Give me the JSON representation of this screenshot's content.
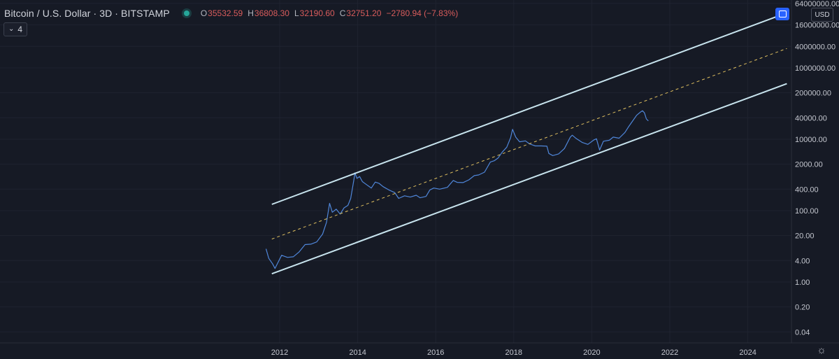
{
  "header": {
    "symbol_title": "Bitcoin / U.S. Dollar · 3D · BITSTAMP",
    "ohlc": [
      {
        "key": "O",
        "value": "35532.59"
      },
      {
        "key": "H",
        "value": "36808.30"
      },
      {
        "key": "L",
        "value": "32190.60"
      },
      {
        "key": "C",
        "value": "32751.20"
      }
    ],
    "change": "−2780.94 (−7.83%)",
    "indicator_count": "4"
  },
  "currency": "USD",
  "colors": {
    "background": "#161a25",
    "price_series": "#4f86d9",
    "channel_lines": "#c8e4ee",
    "midline": "#e0c060",
    "grid": "#1f2330"
  },
  "chart_data": {
    "type": "line",
    "title": "",
    "y_scale": "log",
    "x_axis_labels": [
      "2012",
      "2014",
      "2016",
      "2018",
      "2020",
      "2022",
      "2024"
    ],
    "y_axis_labels": [
      "64000000.00",
      "16000000.00",
      "4000000.00",
      "1000000.00",
      "200000.00",
      "40000.00",
      "10000.00",
      "2000.00",
      "400.00",
      "100.00",
      "20.00",
      "4.00",
      "1.00",
      "0.20",
      "0.04"
    ],
    "y_ticks": [
      64000000,
      16000000,
      4000000,
      1000000,
      200000,
      40000,
      10000,
      2000,
      400,
      100,
      20,
      4,
      1,
      0.2,
      0.04
    ],
    "grid": true,
    "series": [
      {
        "type": "price",
        "points": [
          [
            2011.65,
            8.5
          ],
          [
            2011.72,
            4.6
          ],
          [
            2011.82,
            3.2
          ],
          [
            2011.88,
            2.4
          ],
          [
            2011.95,
            3.4
          ],
          [
            2012.05,
            5.6
          ],
          [
            2012.2,
            4.9
          ],
          [
            2012.35,
            5.1
          ],
          [
            2012.5,
            7.0
          ],
          [
            2012.65,
            11.2
          ],
          [
            2012.8,
            11.5
          ],
          [
            2012.95,
            13.3
          ],
          [
            2013.1,
            22
          ],
          [
            2013.2,
            47
          ],
          [
            2013.28,
            160
          ],
          [
            2013.35,
            90
          ],
          [
            2013.45,
            110
          ],
          [
            2013.55,
            80
          ],
          [
            2013.65,
            120
          ],
          [
            2013.75,
            140
          ],
          [
            2013.82,
            220
          ],
          [
            2013.9,
            700
          ],
          [
            2013.93,
            1150
          ],
          [
            2013.98,
            800
          ],
          [
            2014.05,
            900
          ],
          [
            2014.12,
            650
          ],
          [
            2014.2,
            560
          ],
          [
            2014.35,
            430
          ],
          [
            2014.45,
            630
          ],
          [
            2014.55,
            580
          ],
          [
            2014.65,
            470
          ],
          [
            2014.8,
            380
          ],
          [
            2014.95,
            320
          ],
          [
            2015.05,
            220
          ],
          [
            2015.2,
            260
          ],
          [
            2015.35,
            240
          ],
          [
            2015.5,
            270
          ],
          [
            2015.6,
            230
          ],
          [
            2015.75,
            250
          ],
          [
            2015.85,
            380
          ],
          [
            2015.95,
            430
          ],
          [
            2016.1,
            400
          ],
          [
            2016.3,
            450
          ],
          [
            2016.45,
            700
          ],
          [
            2016.55,
            620
          ],
          [
            2016.7,
            610
          ],
          [
            2016.85,
            730
          ],
          [
            2016.99,
            960
          ],
          [
            2017.1,
            1000
          ],
          [
            2017.25,
            1200
          ],
          [
            2017.4,
            2300
          ],
          [
            2017.5,
            2500
          ],
          [
            2017.6,
            3000
          ],
          [
            2017.7,
            4300
          ],
          [
            2017.82,
            6000
          ],
          [
            2017.92,
            11000
          ],
          [
            2017.97,
            19000
          ],
          [
            2018.05,
            11500
          ],
          [
            2018.15,
            8500
          ],
          [
            2018.3,
            9000
          ],
          [
            2018.4,
            7500
          ],
          [
            2018.55,
            6500
          ],
          [
            2018.7,
            6500
          ],
          [
            2018.85,
            6400
          ],
          [
            2018.9,
            4000
          ],
          [
            2019.0,
            3500
          ],
          [
            2019.15,
            3900
          ],
          [
            2019.3,
            5500
          ],
          [
            2019.45,
            11500
          ],
          [
            2019.5,
            13000
          ],
          [
            2019.6,
            10500
          ],
          [
            2019.75,
            8200
          ],
          [
            2019.9,
            7200
          ],
          [
            2020.05,
            9500
          ],
          [
            2020.12,
            10300
          ],
          [
            2020.2,
            5000
          ],
          [
            2020.3,
            8800
          ],
          [
            2020.45,
            9400
          ],
          [
            2020.55,
            11500
          ],
          [
            2020.7,
            10700
          ],
          [
            2020.85,
            15500
          ],
          [
            2020.95,
            23000
          ],
          [
            2021.05,
            33000
          ],
          [
            2021.15,
            47000
          ],
          [
            2021.25,
            58000
          ],
          [
            2021.3,
            63000
          ],
          [
            2021.35,
            55000
          ],
          [
            2021.4,
            37000
          ],
          [
            2021.45,
            32751
          ]
        ]
      },
      {
        "type": "upper-channel",
        "points": [
          [
            2011.8,
            150
          ],
          [
            2025.0,
            35000000
          ]
        ]
      },
      {
        "type": "midline",
        "points": [
          [
            2011.8,
            16
          ],
          [
            2025.0,
            3500000
          ]
        ]
      },
      {
        "type": "lower-channel",
        "points": [
          [
            2011.8,
            1.7
          ],
          [
            2025.0,
            360000
          ]
        ]
      }
    ]
  }
}
